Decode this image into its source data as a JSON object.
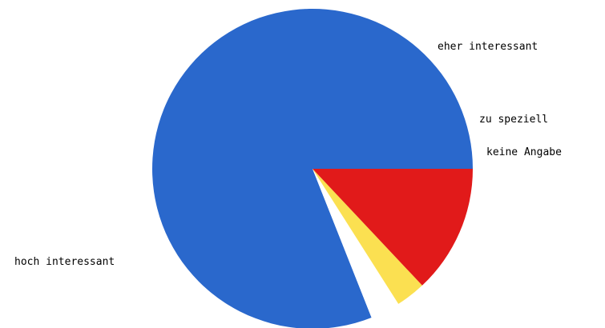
{
  "chart_data": {
    "type": "pie",
    "start_angle_deg": 0,
    "direction": "counterclockwise",
    "legend": "none",
    "slices": [
      {
        "label": "hoch interessant",
        "value": 81,
        "color": "#2a68cc"
      },
      {
        "label": "keine Angabe",
        "value": 3,
        "color": "#ffffff"
      },
      {
        "label": "zu speziell",
        "value": 3,
        "color": "#fbe051"
      },
      {
        "label": "eher interessant",
        "value": 13,
        "color": "#e11a1a"
      }
    ]
  }
}
